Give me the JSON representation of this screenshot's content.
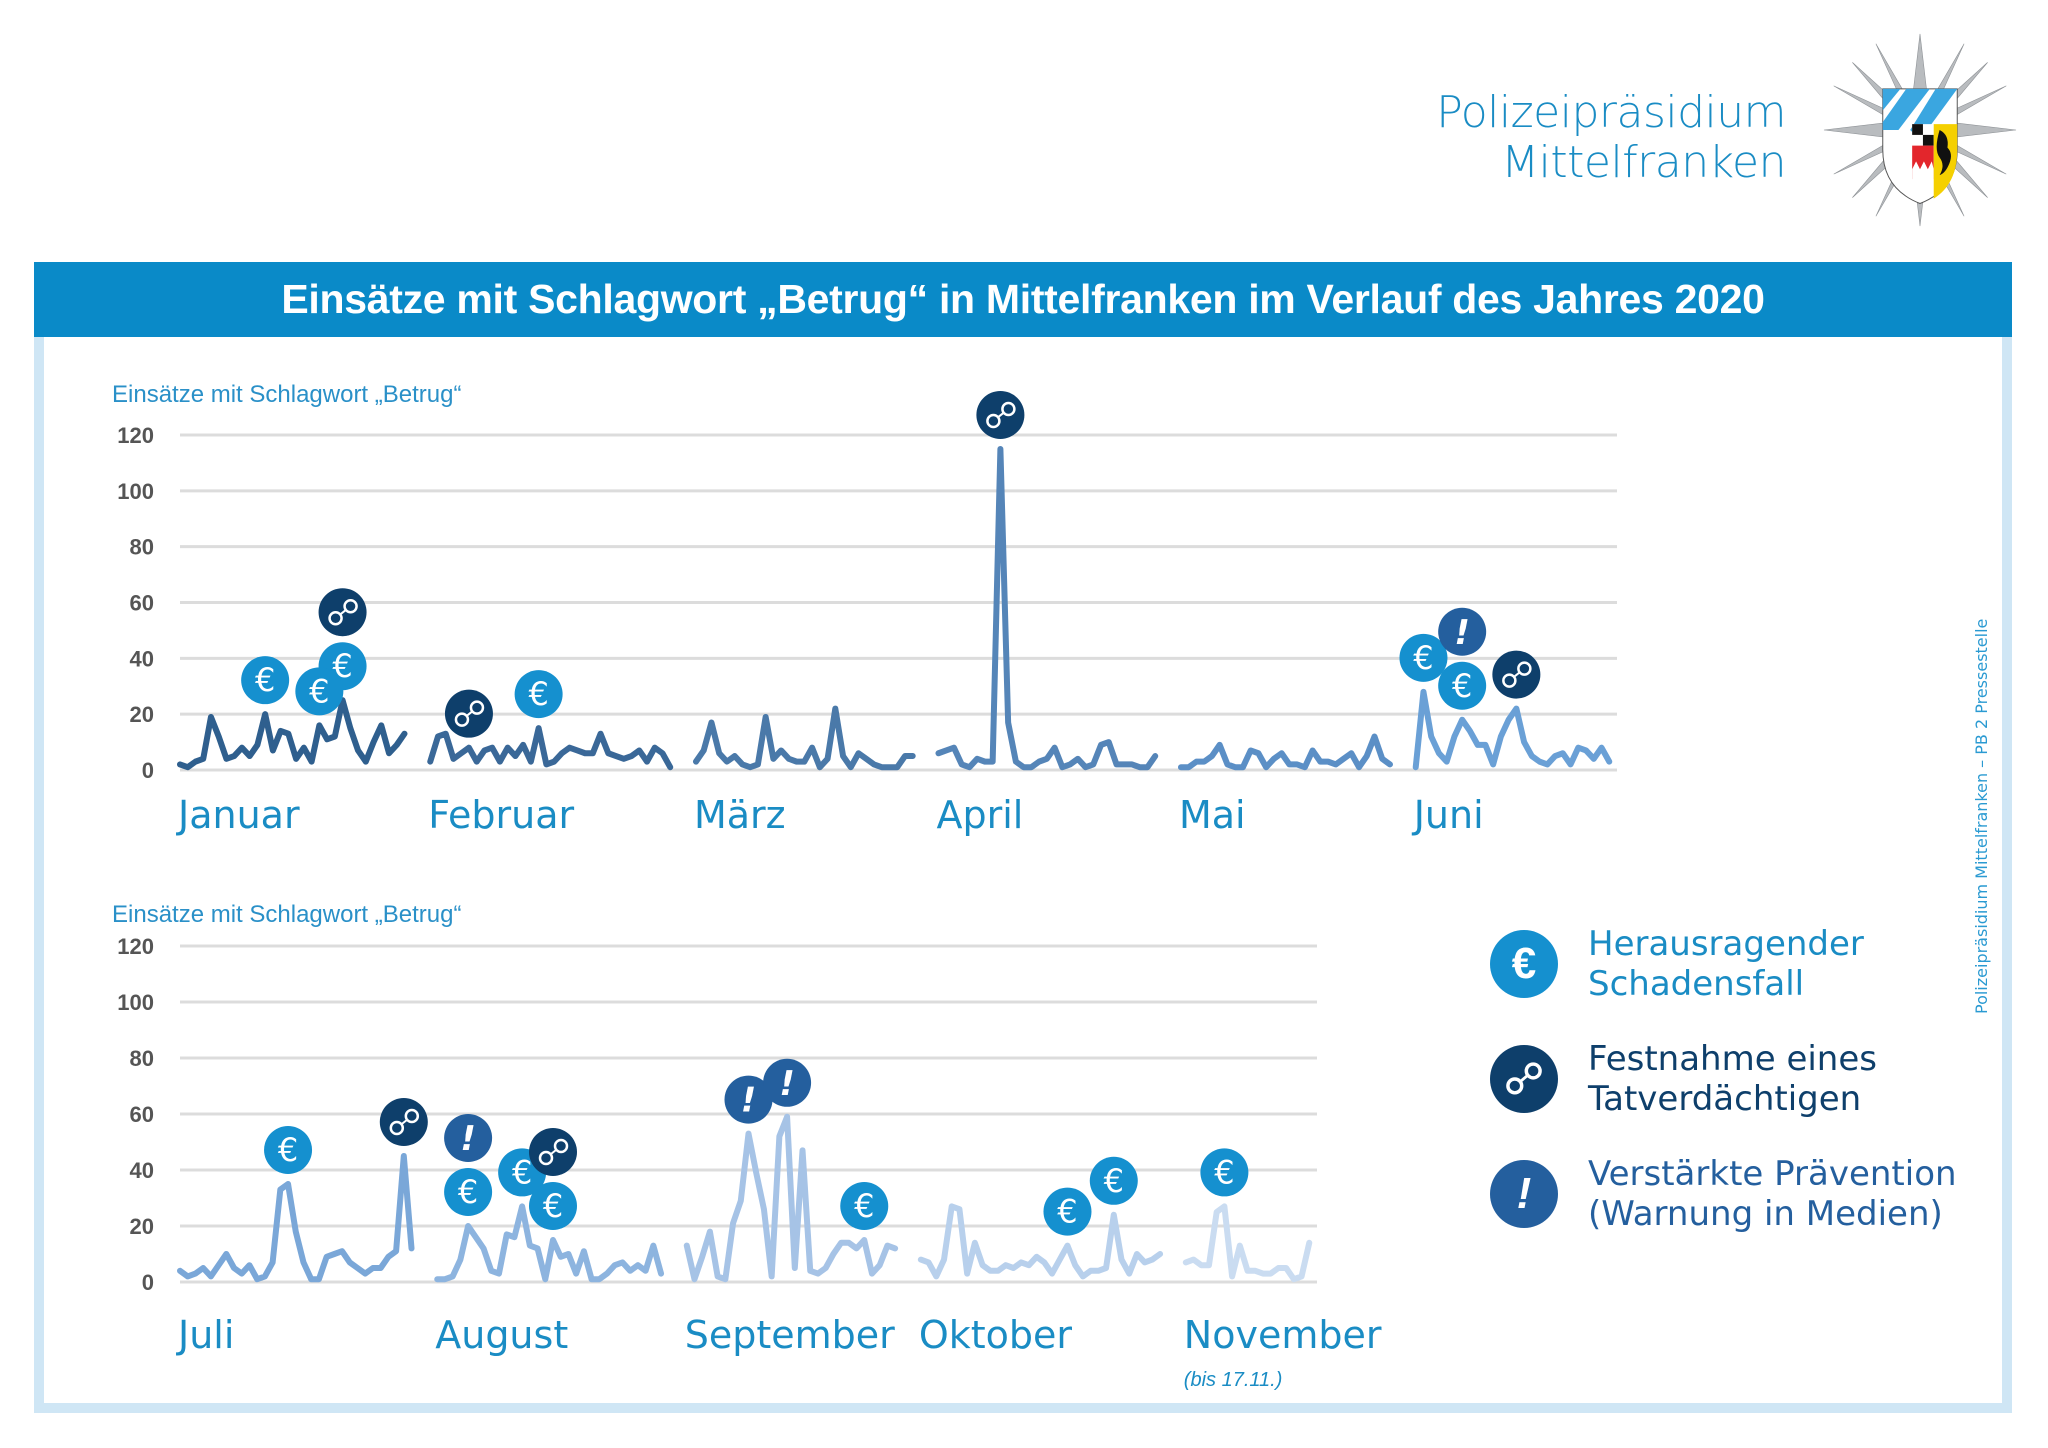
{
  "header": {
    "org_line1": "Polizeipräsidium",
    "org_line2": "Mittelfranken",
    "logo": "police-star-badge-with-coat-of-arms"
  },
  "title": "Einsätze mit Schlagwort „Betrug“ in Mittelfranken im Verlauf des Jahres 2020",
  "credit": "Polizeipräsidium Mittelfranken – PB 2 Pressestelle",
  "colors": {
    "title_bar": "#0a8ac8",
    "frame": "#cfe6f5",
    "text_blue": "#1a8cc4",
    "euro": "#1590cf",
    "handcuffs": "#0e3f6b",
    "warning": "#245f9e"
  },
  "legend": [
    {
      "icon": "euro-icon",
      "type": "euro",
      "line1": "Herausragender",
      "line2": "Schadensfall",
      "color": "#1590cf",
      "text_color": "#1a8cc4"
    },
    {
      "icon": "handcuffs-icon",
      "type": "cuffs",
      "line1": "Festnahme eines",
      "line2": "Tatverdächtigen",
      "color": "#0e3f6b",
      "text_color": "#0e3f6b"
    },
    {
      "icon": "exclamation-icon",
      "type": "warn",
      "line1": "Verstärkte Prävention",
      "line2": "(Warnung in Medien)",
      "color": "#245f9e",
      "text_color": "#245f9e"
    }
  ],
  "chart_data": [
    {
      "type": "line",
      "title": "Einsätze mit Schlagwort „Betrug“ (Januar–Juni 2020)",
      "ylabel": "Einsätze mit Schlagwort „Betrug“",
      "ylim": [
        0,
        120
      ],
      "yticks": [
        "0",
        "20",
        "40",
        "60",
        "80",
        "100",
        "120"
      ],
      "grid": true,
      "months": [
        {
          "label": "Januar",
          "color": "#2f5f8e",
          "values": [
            2,
            1,
            3,
            4,
            19,
            12,
            4,
            5,
            8,
            5,
            9,
            20,
            7,
            14,
            13,
            4,
            8,
            3,
            16,
            11,
            12,
            25,
            15,
            7,
            3,
            10,
            16,
            6,
            9,
            13
          ]
        },
        {
          "label": "Februar",
          "color": "#3a6898",
          "values": [
            3,
            12,
            13,
            4,
            6,
            8,
            3,
            7,
            8,
            3,
            8,
            5,
            9,
            3,
            15,
            2,
            3,
            6,
            8,
            7,
            6,
            6,
            13,
            6,
            5,
            4,
            5,
            7,
            3,
            8,
            6,
            1
          ]
        },
        {
          "label": "März",
          "color": "#4a79a9",
          "values": [
            3,
            7,
            17,
            6,
            3,
            5,
            2,
            1,
            2,
            19,
            4,
            7,
            4,
            3,
            3,
            8,
            1,
            4,
            22,
            5,
            1,
            6,
            4,
            2,
            1,
            1,
            1,
            5,
            5
          ]
        },
        {
          "label": "April",
          "color": "#5585b8",
          "values": [
            6,
            7,
            8,
            2,
            1,
            4,
            3,
            3,
            115,
            17,
            3,
            1,
            1,
            3,
            4,
            8,
            1,
            2,
            4,
            1,
            2,
            9,
            10,
            2,
            2,
            2,
            1,
            1,
            5
          ]
        },
        {
          "label": "Mai",
          "color": "#5b8fc6",
          "values": [
            1,
            1,
            3,
            3,
            5,
            9,
            2,
            1,
            1,
            7,
            6,
            1,
            4,
            6,
            2,
            2,
            1,
            7,
            3,
            3,
            2,
            4,
            6,
            1,
            5,
            12,
            4,
            2
          ]
        },
        {
          "label": "Juni",
          "color": "#6aa0d6",
          "values": [
            1,
            28,
            12,
            6,
            3,
            12,
            18,
            14,
            9,
            9,
            2,
            12,
            18,
            22,
            10,
            5,
            3,
            2,
            5,
            6,
            2,
            8,
            7,
            4,
            8,
            3
          ]
        }
      ],
      "markers": [
        {
          "type": "euro",
          "month": "Januar",
          "value": 20,
          "stack": 0
        },
        {
          "type": "euro",
          "month": "Januar",
          "value": 25,
          "stack": 0
        },
        {
          "type": "cuffs",
          "month": "Januar",
          "value": 25,
          "stack": 1
        },
        {
          "type": "euro",
          "month": "Januar",
          "value": 16,
          "stack": 0
        },
        {
          "type": "euro",
          "month": "Februar",
          "value": 15,
          "stack": 0
        },
        {
          "type": "cuffs",
          "month": "Februar",
          "value": 8,
          "stack": 0
        },
        {
          "type": "cuffs",
          "month": "April",
          "value": 115,
          "stack": 0
        },
        {
          "type": "euro",
          "month": "Juni",
          "value": 28,
          "stack": 0
        },
        {
          "type": "euro",
          "month": "Juni",
          "value": 18,
          "stack": 0
        },
        {
          "type": "warn",
          "month": "Juni",
          "value": 18,
          "stack": 1
        },
        {
          "type": "cuffs",
          "month": "Juni",
          "value": 22,
          "stack": 0
        }
      ]
    },
    {
      "type": "line",
      "title": "Einsätze mit Schlagwort „Betrug“ (Juli–November 2020)",
      "ylabel": "Einsätze mit Schlagwort „Betrug“",
      "ylim": [
        0,
        120
      ],
      "yticks": [
        "0",
        "20",
        "40",
        "60",
        "80",
        "100",
        "120"
      ],
      "grid": true,
      "note": "(bis 17.11.)",
      "months": [
        {
          "label": "Juli",
          "color": "#7aa7d8",
          "values": [
            4,
            2,
            3,
            5,
            2,
            6,
            10,
            5,
            3,
            6,
            1,
            2,
            7,
            33,
            35,
            18,
            7,
            1,
            1,
            9,
            10,
            11,
            7,
            5,
            3,
            5,
            5,
            9,
            11,
            45,
            12
          ]
        },
        {
          "label": "August",
          "color": "#8db4df",
          "values": [
            1,
            1,
            2,
            8,
            20,
            16,
            12,
            4,
            3,
            17,
            16,
            27,
            13,
            12,
            1,
            15,
            9,
            10,
            3,
            11,
            1,
            1,
            3,
            6,
            7,
            4,
            6,
            4,
            13,
            3
          ]
        },
        {
          "label": "September",
          "color": "#a6c3e6",
          "values": [
            13,
            1,
            9,
            18,
            2,
            1,
            21,
            29,
            53,
            39,
            26,
            2,
            52,
            59,
            5,
            47,
            4,
            3,
            5,
            10,
            14,
            14,
            12,
            15,
            3,
            6,
            13,
            12
          ]
        },
        {
          "label": "Oktober",
          "color": "#b8d0ec",
          "values": [
            8,
            7,
            2,
            8,
            27,
            26,
            3,
            14,
            6,
            4,
            4,
            6,
            5,
            7,
            6,
            9,
            7,
            3,
            8,
            13,
            6,
            2,
            4,
            4,
            5,
            24,
            8,
            3,
            10,
            7,
            8,
            10
          ]
        },
        {
          "label": "November",
          "color": "#cadcf1",
          "values": [
            7,
            8,
            6,
            6,
            25,
            27,
            2,
            13,
            4,
            4,
            3,
            3,
            5,
            5,
            1,
            2,
            14
          ]
        }
      ],
      "markers": [
        {
          "type": "euro",
          "month": "Juli",
          "value": 35,
          "stack": 0
        },
        {
          "type": "cuffs",
          "month": "Juli",
          "value": 45,
          "stack": 0
        },
        {
          "type": "euro",
          "month": "August",
          "value": 20,
          "stack": 0
        },
        {
          "type": "warn",
          "month": "August",
          "value": 20,
          "stack": 1
        },
        {
          "type": "euro",
          "month": "August",
          "value": 27,
          "stack": 0
        },
        {
          "type": "euro",
          "month": "August",
          "value": 15,
          "stack": 0
        },
        {
          "type": "cuffs",
          "month": "August",
          "value": 15,
          "stack": 1
        },
        {
          "type": "warn",
          "month": "September",
          "value": 53,
          "stack": 0
        },
        {
          "type": "warn",
          "month": "September",
          "value": 59,
          "stack": 0
        },
        {
          "type": "euro",
          "month": "September",
          "value": 15,
          "stack": 0
        },
        {
          "type": "euro",
          "month": "Oktober",
          "value": 13,
          "stack": 0
        },
        {
          "type": "euro",
          "month": "Oktober",
          "value": 24,
          "stack": 0
        },
        {
          "type": "euro",
          "month": "November",
          "value": 27,
          "stack": 0
        }
      ]
    }
  ]
}
